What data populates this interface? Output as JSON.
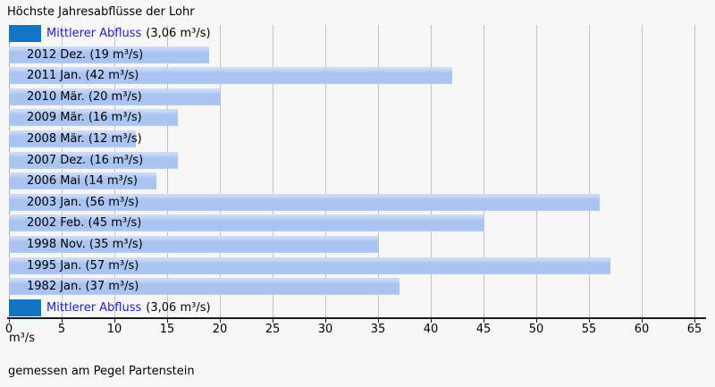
{
  "title": "Höchste Jahresabflüsse der Lohr",
  "footer": "gemessen am Pegel Partenstein",
  "axis": {
    "unit_label": "m³/s",
    "ticks": [
      0,
      5,
      10,
      15,
      20,
      25,
      30,
      35,
      40,
      45,
      50,
      55,
      60,
      65
    ],
    "min": 0,
    "max": 65
  },
  "colors": {
    "page_bg": "#f7f7f7",
    "bar_light": "#a9c4f1",
    "bar_light_top": "#ccdaf7",
    "bar_light_btm": "#bccff4",
    "bar_dark": "#1575c5",
    "link_blue": "#2020d8",
    "gridline": "#c4c4c4",
    "gridline_zero": "#a8a8a8",
    "axis_line": "#1a1a1a",
    "text": "#000000"
  },
  "chart_data": {
    "type": "bar",
    "orientation": "horizontal",
    "title": "Höchste Jahresabflüsse der Lohr",
    "xlabel": "m³/s",
    "xlim": [
      0,
      65
    ],
    "tick_step": 5,
    "grid": true,
    "note": "gemessen am Pegel Partenstein",
    "categories": [
      "Mittlerer Abfluss",
      "2012 Dez.",
      "2011 Jan.",
      "2010 Mär.",
      "2009 Mär.",
      "2008 Mär.",
      "2007 Dez.",
      "2006 Mai",
      "2003 Jan.",
      "2002 Feb.",
      "1998 Nov.",
      "1995 Jan.",
      "1982 Jan.",
      "Mittlerer Abfluss"
    ],
    "values": [
      3.06,
      19,
      42,
      20,
      16,
      12,
      16,
      14,
      56,
      45,
      35,
      57,
      37,
      3.06
    ],
    "rows": [
      {
        "kind": "mean",
        "link": "Mittlerer Abfluss",
        "suffix": "(3,06 m³/s)",
        "value": 3.06
      },
      {
        "kind": "year",
        "label": "2012 Dez. (19 m³/s)",
        "value": 19
      },
      {
        "kind": "year",
        "label": "2011 Jan. (42 m³/s)",
        "value": 42
      },
      {
        "kind": "year",
        "label": "2010 Mär. (20 m³/s)",
        "value": 20
      },
      {
        "kind": "year",
        "label": "2009 Mär. (16 m³/s)",
        "value": 16
      },
      {
        "kind": "year",
        "label": "2008 Mär. (12 m³/s)",
        "value": 12
      },
      {
        "kind": "year",
        "label": "2007 Dez. (16 m³/s)",
        "value": 16
      },
      {
        "kind": "year",
        "label": "2006 Mai (14 m³/s)",
        "value": 14
      },
      {
        "kind": "year",
        "label": "2003 Jan. (56 m³/s)",
        "value": 56
      },
      {
        "kind": "year",
        "label": "2002 Feb. (45 m³/s)",
        "value": 45
      },
      {
        "kind": "year",
        "label": "1998 Nov. (35 m³/s)",
        "value": 35
      },
      {
        "kind": "year",
        "label": "1995 Jan. (57 m³/s)",
        "value": 57
      },
      {
        "kind": "year",
        "label": "1982 Jan. (37 m³/s)",
        "value": 37
      },
      {
        "kind": "mean",
        "link": "Mittlerer Abfluss",
        "suffix": "(3,06 m³/s)",
        "value": 3.06
      }
    ]
  }
}
